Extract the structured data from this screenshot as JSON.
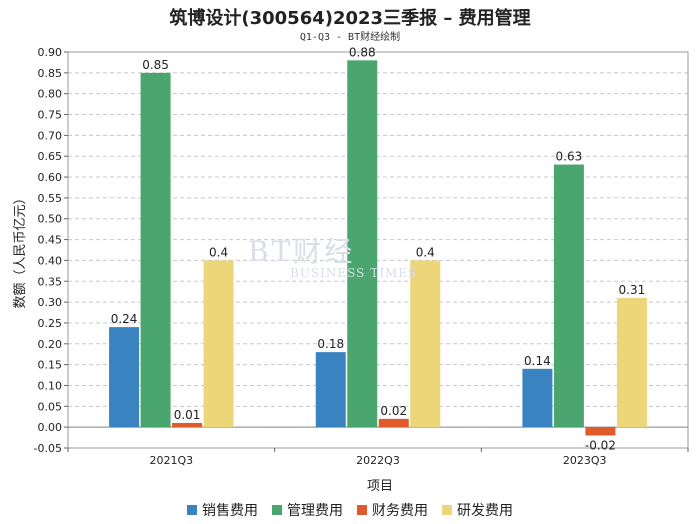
{
  "title": "筑博设计(300564)2023三季报 – 费用管理",
  "subtitle": "Q1-Q3 - BT财经绘制",
  "watermark": {
    "main": "BT财经",
    "sub": "BUSINESS TIMES"
  },
  "chart_data": {
    "type": "bar",
    "categories": [
      "2021Q3",
      "2022Q3",
      "2023Q3"
    ],
    "series": [
      {
        "name": "销售费用",
        "color": "#3a83c1",
        "values": [
          0.24,
          0.18,
          0.14
        ],
        "labels": [
          "0.24",
          "0.18",
          "0.14"
        ]
      },
      {
        "name": "管理费用",
        "color": "#4aa56e",
        "values": [
          0.85,
          0.88,
          0.63
        ],
        "labels": [
          "0.85",
          "0.88",
          "0.63"
        ]
      },
      {
        "name": "财务费用",
        "color": "#e05a2b",
        "values": [
          0.01,
          0.02,
          -0.02
        ],
        "labels": [
          "0.01",
          "0.02",
          "-0.02"
        ]
      },
      {
        "name": "研发费用",
        "color": "#ecd679",
        "values": [
          0.4,
          0.4,
          0.31
        ],
        "labels": [
          "0.4",
          "0.4",
          "0.31"
        ]
      }
    ],
    "xlabel": "项目",
    "ylabel": "数额（人民币亿元）",
    "ylim": [
      -0.05,
      0.9
    ],
    "yticks": [
      "-0.05",
      "0.00",
      "0.05",
      "0.10",
      "0.15",
      "0.20",
      "0.25",
      "0.30",
      "0.35",
      "0.40",
      "0.45",
      "0.50",
      "0.55",
      "0.60",
      "0.65",
      "0.70",
      "0.75",
      "0.80",
      "0.85",
      "0.90"
    ],
    "grid": true,
    "legend_position": "bottom"
  }
}
